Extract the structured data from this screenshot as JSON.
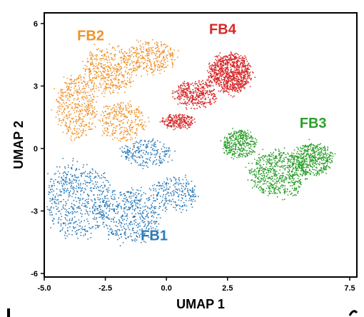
{
  "chart_data": {
    "type": "scatter",
    "xlabel": "UMAP 1",
    "ylabel": "UMAP 2",
    "xlim": [
      -5.0,
      7.5
    ],
    "ylim": [
      -6,
      6
    ],
    "xticks": [
      -5.0,
      -2.5,
      0.0,
      2.5,
      7.5
    ],
    "xtick_labels": [
      "-5.0",
      "-2.5",
      "0.0",
      "2.5",
      "7.5"
    ],
    "yticks": [
      6,
      3,
      0,
      -3,
      -6
    ],
    "ytick_labels": [
      "6",
      "3",
      "0",
      "-3",
      "-6"
    ],
    "grid": false,
    "legend": "none",
    "series": [
      {
        "name": "FB1",
        "color": "#2a7ab8",
        "label_at": [
          -0.5,
          -4.4
        ],
        "regions": [
          {
            "cx": -3.6,
            "cy": -2.5,
            "rx": 1.6,
            "ry": 2.1,
            "weight": 0.4
          },
          {
            "cx": -1.5,
            "cy": -3.2,
            "rx": 1.5,
            "ry": 1.5,
            "weight": 0.3
          },
          {
            "cx": 0.3,
            "cy": -2.2,
            "rx": 1.1,
            "ry": 1.0,
            "weight": 0.15
          },
          {
            "cx": -0.8,
            "cy": -0.2,
            "rx": 1.2,
            "ry": 0.8,
            "weight": 0.15
          }
        ]
      },
      {
        "name": "FB2",
        "color": "#f0922a",
        "label_at": [
          -3.1,
          5.2
        ],
        "regions": [
          {
            "cx": -3.7,
            "cy": 2.0,
            "rx": 1.0,
            "ry": 1.8,
            "weight": 0.3
          },
          {
            "cx": -2.3,
            "cy": 3.8,
            "rx": 1.3,
            "ry": 1.3,
            "weight": 0.3
          },
          {
            "cx": -0.6,
            "cy": 4.4,
            "rx": 1.1,
            "ry": 0.9,
            "weight": 0.2
          },
          {
            "cx": -1.8,
            "cy": 1.3,
            "rx": 1.1,
            "ry": 1.1,
            "weight": 0.2
          }
        ]
      },
      {
        "name": "FB3",
        "color": "#2ca02c",
        "label_at": [
          6.0,
          1.0
        ],
        "regions": [
          {
            "cx": 4.6,
            "cy": -1.2,
            "rx": 1.4,
            "ry": 1.3,
            "weight": 0.45
          },
          {
            "cx": 6.0,
            "cy": -0.5,
            "rx": 0.9,
            "ry": 0.9,
            "weight": 0.3
          },
          {
            "cx": 3.0,
            "cy": 0.2,
            "rx": 0.8,
            "ry": 0.8,
            "weight": 0.25
          }
        ]
      },
      {
        "name": "FB4",
        "color": "#d62728",
        "label_at": [
          2.3,
          5.5
        ],
        "regions": [
          {
            "cx": 2.6,
            "cy": 3.6,
            "rx": 1.0,
            "ry": 1.1,
            "weight": 0.6
          },
          {
            "cx": 1.2,
            "cy": 2.6,
            "rx": 1.0,
            "ry": 0.8,
            "weight": 0.25
          },
          {
            "cx": 0.5,
            "cy": 1.3,
            "rx": 0.8,
            "ry": 0.4,
            "weight": 0.15
          }
        ]
      }
    ]
  }
}
